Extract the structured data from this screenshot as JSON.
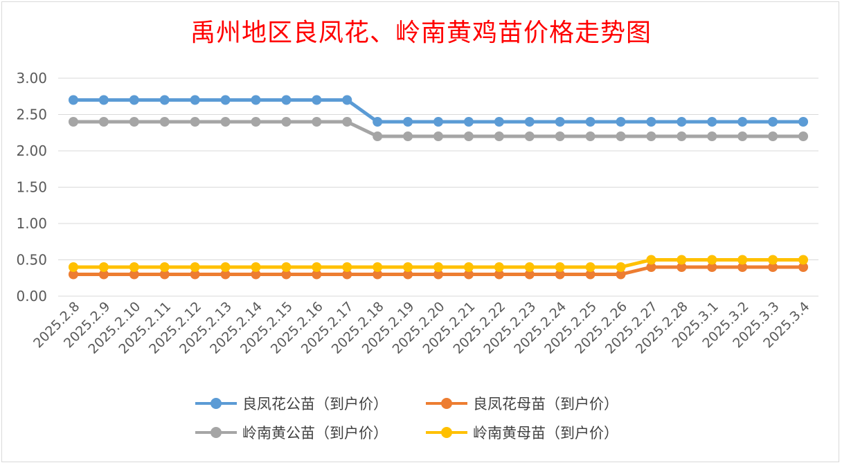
{
  "chart_data": {
    "type": "line",
    "title": "禹州地区良凤花、岭南黄鸡苗价格走势图",
    "xlabel": "",
    "ylabel": "",
    "ylim": [
      0,
      3
    ],
    "yticks": [
      "0.00",
      "0.50",
      "1.00",
      "1.50",
      "2.00",
      "2.50",
      "3.00"
    ],
    "grid": true,
    "legend_position": "bottom",
    "categories": [
      "2025.2.8",
      "2025.2.9",
      "2025.2.10",
      "2025.2.11",
      "2025.2.12",
      "2025.2.13",
      "2025.2.14",
      "2025.2.15",
      "2025.2.16",
      "2025.2.17",
      "2025.2.18",
      "2025.2.19",
      "2025.2.20",
      "2025.2.21",
      "2025.2.22",
      "2025.2.23",
      "2025.2.24",
      "2025.2.25",
      "2025.2.26",
      "2025.2.27",
      "2025.2.28",
      "2025.3.1",
      "2025.3.2",
      "2025.3.3",
      "2025.3.4"
    ],
    "series": [
      {
        "name": "良凤花公苗（到户价）",
        "color": "#5b9bd5",
        "values": [
          2.7,
          2.7,
          2.7,
          2.7,
          2.7,
          2.7,
          2.7,
          2.7,
          2.7,
          2.7,
          2.4,
          2.4,
          2.4,
          2.4,
          2.4,
          2.4,
          2.4,
          2.4,
          2.4,
          2.4,
          2.4,
          2.4,
          2.4,
          2.4,
          2.4
        ]
      },
      {
        "name": "良凤花母苗（到户价）",
        "color": "#ed7d31",
        "values": [
          0.3,
          0.3,
          0.3,
          0.3,
          0.3,
          0.3,
          0.3,
          0.3,
          0.3,
          0.3,
          0.3,
          0.3,
          0.3,
          0.3,
          0.3,
          0.3,
          0.3,
          0.3,
          0.3,
          0.4,
          0.4,
          0.4,
          0.4,
          0.4,
          0.4
        ]
      },
      {
        "name": "岭南黄公苗（到户价）",
        "color": "#a5a5a5",
        "values": [
          2.4,
          2.4,
          2.4,
          2.4,
          2.4,
          2.4,
          2.4,
          2.4,
          2.4,
          2.4,
          2.2,
          2.2,
          2.2,
          2.2,
          2.2,
          2.2,
          2.2,
          2.2,
          2.2,
          2.2,
          2.2,
          2.2,
          2.2,
          2.2,
          2.2
        ]
      },
      {
        "name": "岭南黄母苗（到户价）",
        "color": "#ffc000",
        "values": [
          0.4,
          0.4,
          0.4,
          0.4,
          0.4,
          0.4,
          0.4,
          0.4,
          0.4,
          0.4,
          0.4,
          0.4,
          0.4,
          0.4,
          0.4,
          0.4,
          0.4,
          0.4,
          0.4,
          0.5,
          0.5,
          0.5,
          0.5,
          0.5,
          0.5
        ]
      }
    ]
  },
  "colors": {
    "title": "#ff0000",
    "grid": "#d9d9d9",
    "axis_text": "#595959"
  }
}
